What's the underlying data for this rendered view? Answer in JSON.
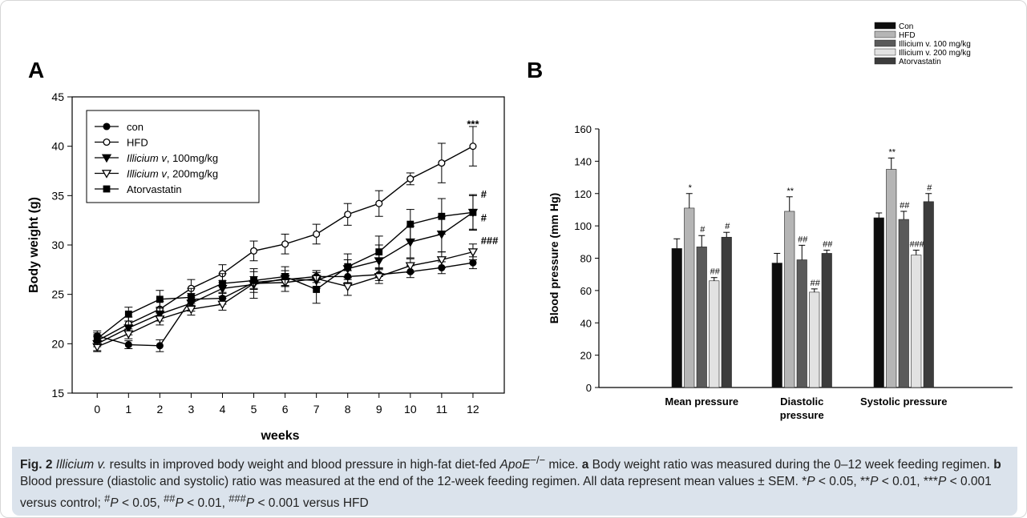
{
  "panel_labels": [
    "A",
    "B"
  ],
  "caption": {
    "fig_label": "Fig. 2",
    "title_i": "Illicium v.",
    "title_mid": " results in improved body weight and blood pressure in high-fat diet-fed ",
    "title_gene": "ApoE",
    "title_gene_sup": "−/−",
    "title_end": " mice. ",
    "a_label": "a",
    "a_text": " Body weight ratio was measured during the 0–12 week feeding regimen. ",
    "b_label": "b",
    "b_text": " Blood pressure (diastolic and systolic) ratio was measured at the end of the 12-week feeding regimen. All data represent mean values ± SEM. *",
    "p1": "P",
    "t1": " < 0.05, **",
    "p2": "P",
    "t2": " < 0.01, ***",
    "p3": "P",
    "t3": " < 0.001 versus control; ",
    "s1": "#",
    "p4": "P",
    "t4": " < 0.05, ",
    "s2": "##",
    "p5": "P",
    "t5": " < 0.01, ",
    "s3": "###",
    "p6": "P",
    "t6": " < 0.001 versus HFD"
  },
  "chart_data": [
    {
      "type": "line",
      "panel": "A",
      "xlabel": "weeks",
      "ylabel": "Body weight (g)",
      "x": [
        0,
        1,
        2,
        3,
        4,
        5,
        6,
        7,
        8,
        9,
        10,
        11,
        12
      ],
      "xlim": [
        -0.8,
        13
      ],
      "ylim": [
        15,
        45
      ],
      "yticks": [
        15,
        20,
        25,
        30,
        35,
        40,
        45
      ],
      "legend_position": "top-left",
      "series": [
        {
          "name": "con",
          "marker": "filled-circle",
          "values": [
            20.8,
            19.9,
            19.8,
            24.5,
            24.6,
            26.2,
            26.5,
            26.8,
            26.8,
            27.0,
            27.3,
            27.7,
            28.2
          ],
          "err": [
            0.5,
            0.4,
            0.6,
            0.6,
            0.6,
            0.6,
            0.6,
            0.6,
            0.6,
            0.6,
            0.6,
            0.6,
            0.6
          ]
        },
        {
          "name": "HFD",
          "marker": "open-circle",
          "values": [
            20.3,
            22.0,
            23.5,
            25.6,
            27.1,
            29.4,
            30.1,
            31.1,
            33.1,
            34.2,
            36.7,
            38.3,
            40.0
          ],
          "err": [
            0.6,
            0.7,
            0.8,
            0.9,
            0.9,
            1.0,
            1.0,
            1.0,
            1.1,
            1.3,
            0.6,
            2.0,
            2.0
          ]
        },
        {
          "name": "Illicium v, 100mg/kg",
          "name_italic": "Illicium v",
          "name_rest": ", 100mg/kg",
          "marker": "filled-triangle-down",
          "values": [
            20.0,
            21.6,
            23.0,
            24.1,
            25.6,
            26.0,
            26.6,
            26.4,
            27.6,
            28.4,
            30.3,
            31.1,
            33.3
          ],
          "err": [
            0.7,
            0.7,
            0.7,
            0.8,
            0.8,
            0.8,
            0.8,
            0.8,
            0.9,
            1.6,
            1.6,
            1.8,
            1.8
          ]
        },
        {
          "name": "Illicium v, 200mg/kg",
          "name_italic": "Illicium v",
          "name_rest": ", 200mg/kg",
          "marker": "open-triangle-down",
          "values": [
            19.7,
            21.0,
            22.5,
            23.5,
            24.0,
            26.1,
            26.2,
            26.6,
            25.8,
            26.8,
            27.9,
            28.5,
            29.3
          ],
          "err": [
            0.5,
            0.5,
            0.6,
            0.6,
            0.6,
            1.5,
            0.9,
            0.8,
            0.9,
            0.7,
            0.7,
            0.8,
            0.8
          ]
        },
        {
          "name": "Atorvastatin",
          "marker": "filled-square",
          "values": [
            20.5,
            23.0,
            24.5,
            24.7,
            26.1,
            26.4,
            26.8,
            25.5,
            27.8,
            29.3,
            32.1,
            32.9,
            33.3
          ],
          "err": [
            0.6,
            0.7,
            0.9,
            0.9,
            1.0,
            0.9,
            1.0,
            1.4,
            1.3,
            1.6,
            1.5,
            1.8,
            1.7
          ]
        }
      ],
      "annotations": [
        {
          "text": "***",
          "x": 12,
          "y": 42.3
        },
        {
          "text": "#",
          "x": 12.25,
          "y": 35.2
        },
        {
          "text": "#",
          "x": 12.25,
          "y": 32.8
        },
        {
          "text": "###",
          "x": 12.25,
          "y": 30.5
        }
      ]
    },
    {
      "type": "bar",
      "panel": "B",
      "ylabel": "Blood pressure (mm Hg)",
      "categories": [
        "Mean pressure",
        "Diastolic pressure",
        "Systolic pressure"
      ],
      "category_lines": [
        [
          "Mean pressure"
        ],
        [
          "Diastolic",
          "pressure"
        ],
        [
          "Systolic pressure"
        ]
      ],
      "ylim": [
        0,
        160
      ],
      "yticks": [
        0,
        20,
        40,
        60,
        80,
        100,
        120,
        140,
        160
      ],
      "legend_position": "top-right",
      "series": [
        {
          "name": "Con",
          "color": "#0d0d0d",
          "values": [
            86,
            77,
            105
          ],
          "err": [
            6,
            6,
            3
          ],
          "labels": [
            "",
            "",
            ""
          ]
        },
        {
          "name": "HFD",
          "color": "#b5b5b5",
          "values": [
            111,
            109,
            135
          ],
          "err": [
            9,
            9,
            7
          ],
          "labels": [
            "*",
            "**",
            "**"
          ]
        },
        {
          "name": "Illicium v. 100 mg/kg",
          "color": "#5a5a5a",
          "values": [
            87,
            79,
            104
          ],
          "err": [
            7,
            9,
            5
          ],
          "labels": [
            "#",
            "##",
            "##"
          ]
        },
        {
          "name": "Illicium v. 200 mg/kg",
          "color": "#e2e2e2",
          "values": [
            66,
            59,
            82
          ],
          "err": [
            2,
            2,
            3
          ],
          "labels": [
            "##",
            "##",
            "###"
          ]
        },
        {
          "name": "Atorvastatin",
          "color": "#3c3c3c",
          "values": [
            93,
            83,
            115
          ],
          "err": [
            3,
            2,
            5
          ],
          "labels": [
            "#",
            "##",
            "#"
          ]
        }
      ]
    }
  ]
}
